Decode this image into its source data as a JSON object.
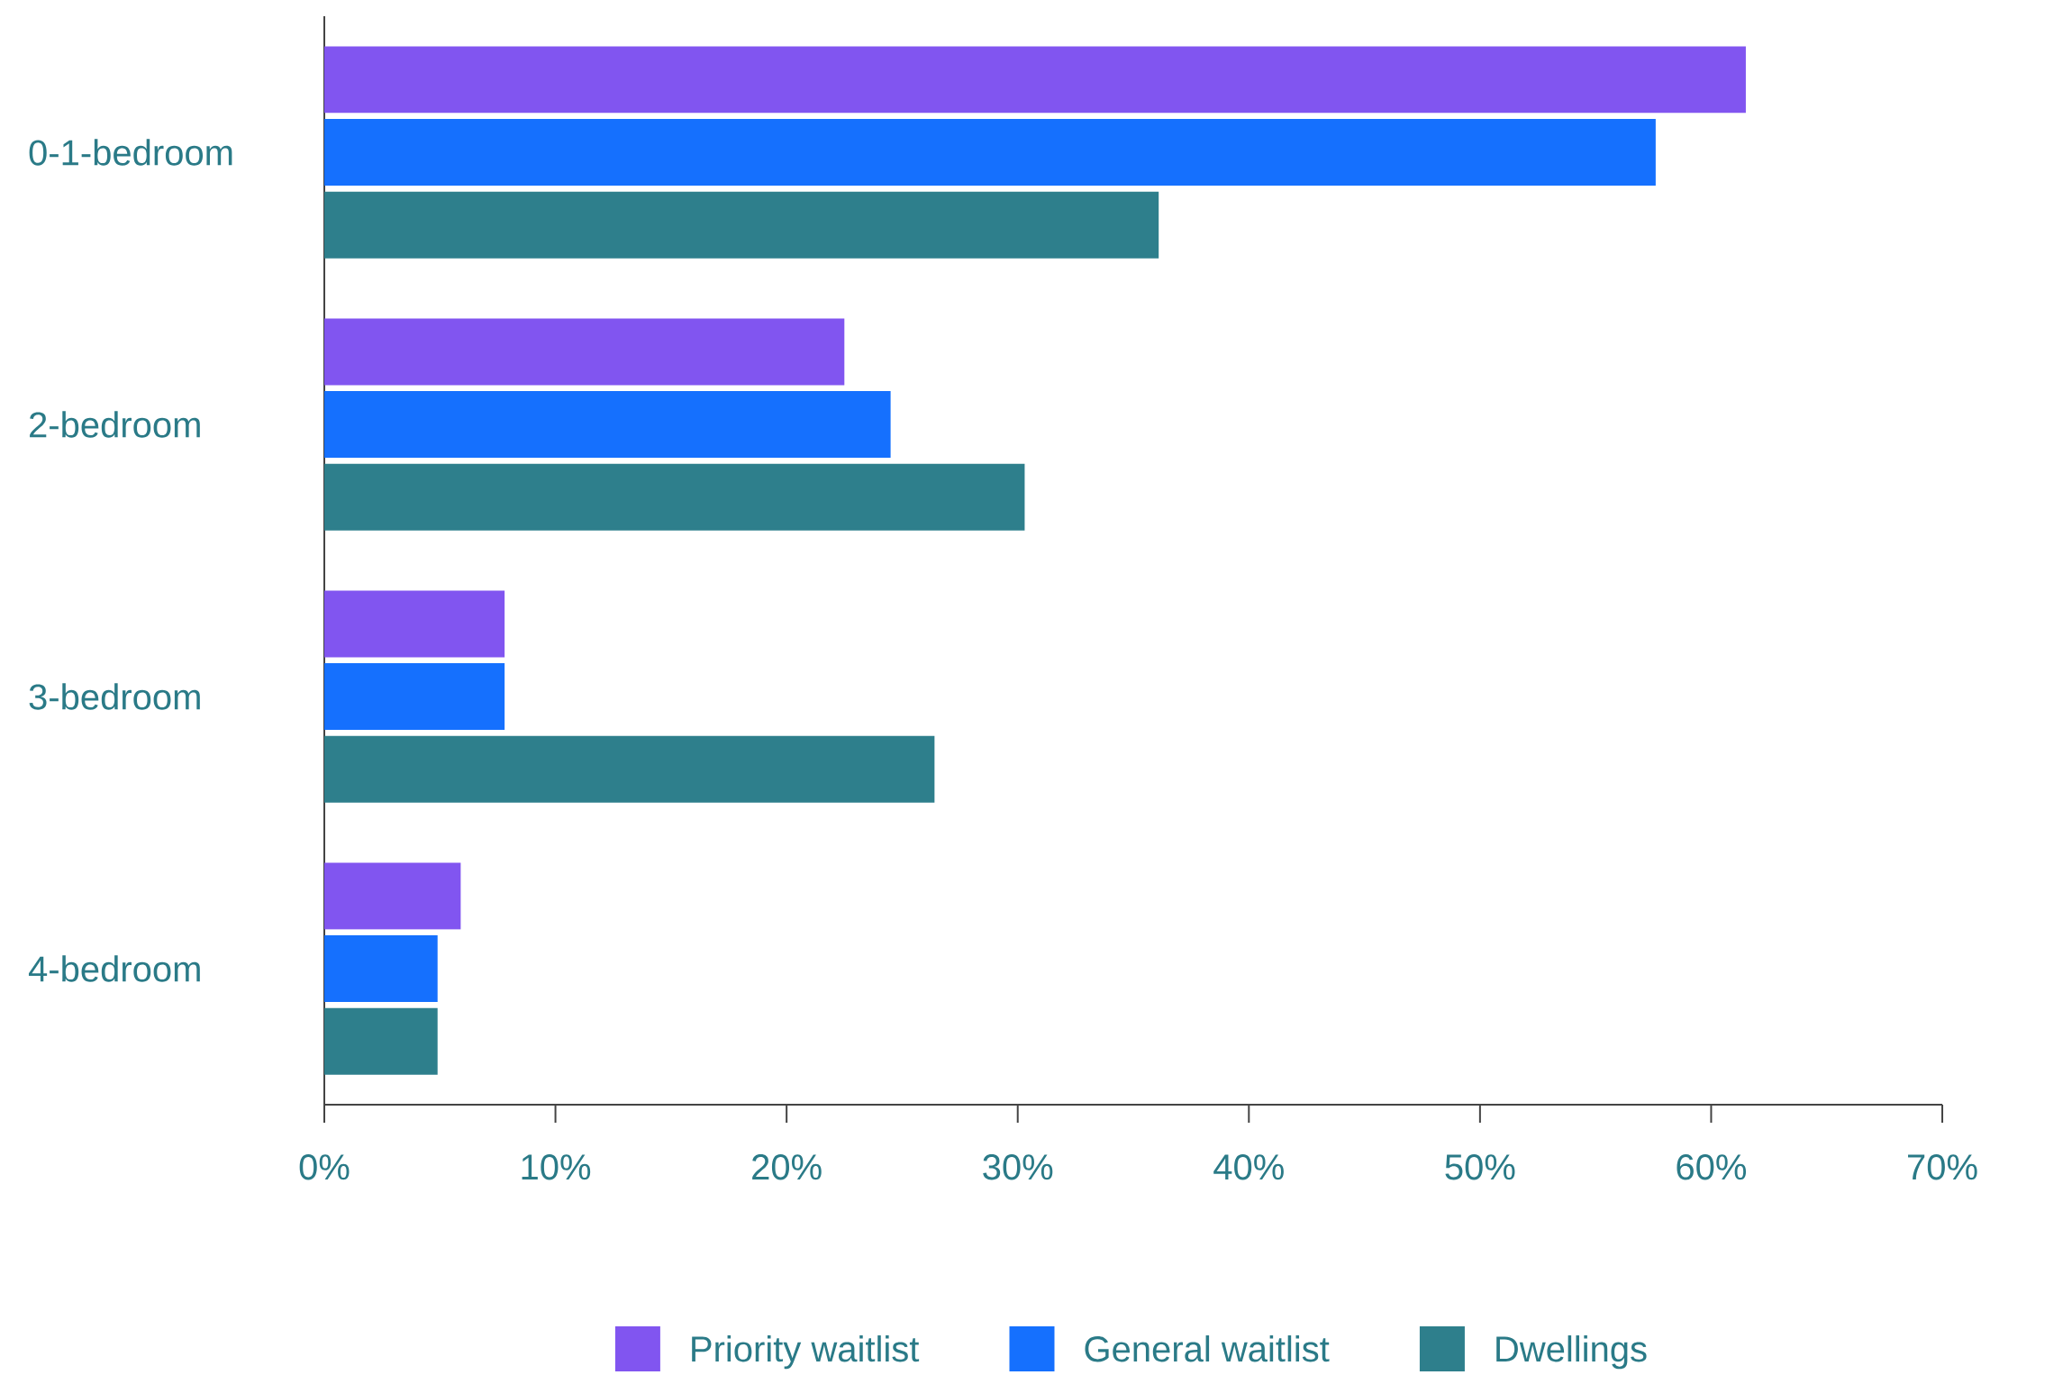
{
  "chart_data": {
    "type": "bar",
    "orientation": "horizontal",
    "categories": [
      "0-1-bedroom",
      "2-bedroom",
      "3-bedroom",
      "4-bedroom"
    ],
    "series": [
      {
        "name": "Priority waitlist",
        "color": "#8155f0",
        "values": [
          61.5,
          22.5,
          7.8,
          5.9
        ]
      },
      {
        "name": "General waitlist",
        "color": "#1570fe",
        "values": [
          57.6,
          24.5,
          7.8,
          4.9
        ]
      },
      {
        "name": "Dwellings",
        "color": "#2e7f8c",
        "values": [
          36.1,
          30.3,
          26.4,
          4.9
        ]
      }
    ],
    "xlim": [
      0,
      70
    ],
    "xticks": [
      {
        "value": 0,
        "label": "0%"
      },
      {
        "value": 10,
        "label": "10%"
      },
      {
        "value": 20,
        "label": "20%"
      },
      {
        "value": 30,
        "label": "30%"
      },
      {
        "value": 40,
        "label": "40%"
      },
      {
        "value": 50,
        "label": "50%"
      },
      {
        "value": 60,
        "label": "60%"
      },
      {
        "value": 70,
        "label": "70%"
      }
    ],
    "legend": "bottom"
  }
}
